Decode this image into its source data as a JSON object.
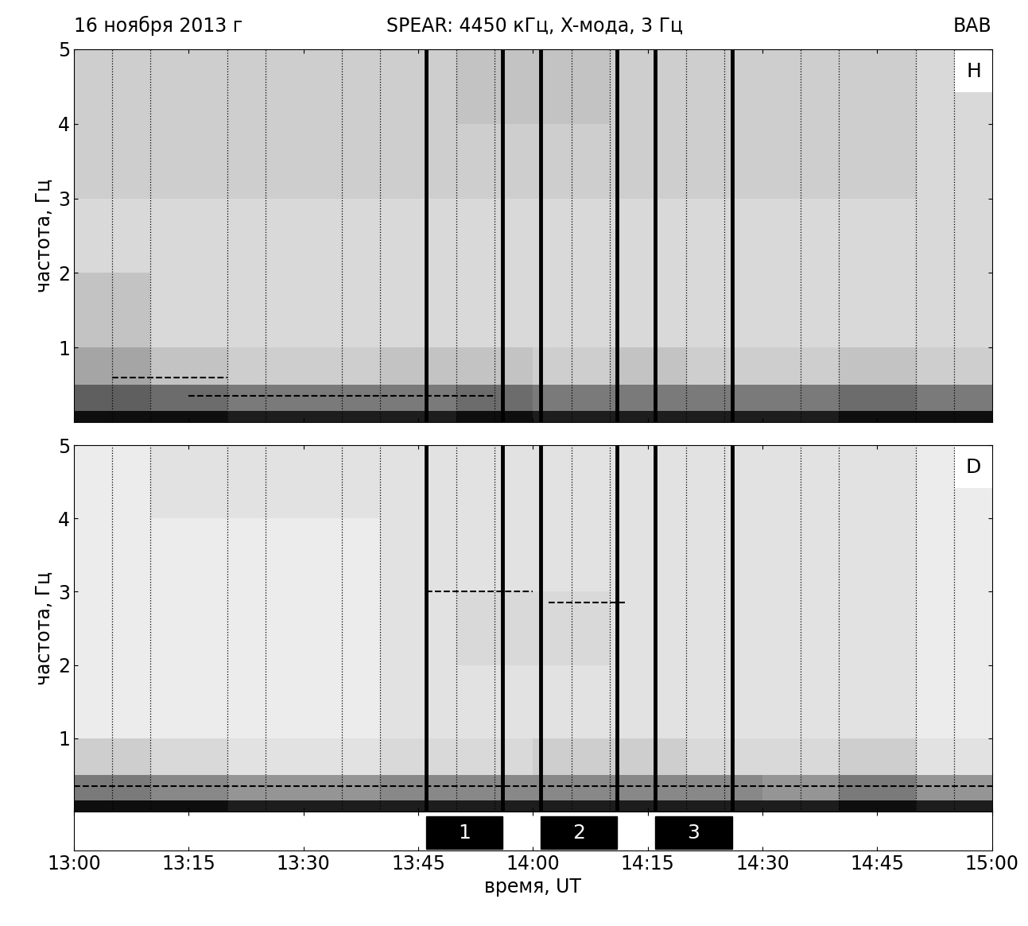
{
  "chart_data": {
    "type": "spectrogram",
    "title_left": "16 ноября 2013 г",
    "title": "SPEAR: 4450 кГц, X-мода, 3 Гц",
    "title_right": "BAB",
    "xlabel": "время, UT",
    "xlim": [
      0,
      120
    ],
    "xticks": [
      {
        "value": 0,
        "label": "13:00"
      },
      {
        "value": 15,
        "label": "13:15"
      },
      {
        "value": 30,
        "label": "13:30"
      },
      {
        "value": 45,
        "label": "13:45"
      },
      {
        "value": 60,
        "label": "14:00"
      },
      {
        "value": 75,
        "label": "14:15"
      },
      {
        "value": 90,
        "label": "14:30"
      },
      {
        "value": 105,
        "label": "14:45"
      },
      {
        "value": 120,
        "label": "15:00"
      }
    ],
    "xminorticks": [
      5,
      10,
      20,
      25,
      35,
      40,
      50,
      55,
      65,
      70,
      80,
      85,
      95,
      100,
      110,
      115
    ],
    "grid": true,
    "color": "#000000",
    "time_edges": [
      0,
      10,
      20,
      30,
      40,
      50,
      60,
      70,
      80,
      90,
      100,
      110,
      120
    ],
    "freq_edges": [
      0,
      0.15,
      0.5,
      1,
      2,
      3,
      4,
      5
    ],
    "color_range": [
      0,
      1
    ],
    "heating": [
      {
        "label": "1",
        "start": 46,
        "end": 56
      },
      {
        "label": "2",
        "start": 61,
        "end": 71
      },
      {
        "label": "3",
        "start": 76,
        "end": 86
      }
    ],
    "panels": [
      {
        "name": "H",
        "ylabel": "частота, Гц",
        "ylim": [
          0,
          5
        ],
        "yticks": [
          1,
          2,
          3,
          4,
          5
        ],
        "tick_labels": "y",
        "cells": [
          [
            0.95,
            0.95,
            0.9,
            0.9,
            0.9,
            0.95,
            0.9,
            0.9,
            0.9,
            0.9,
            0.95,
            0.95
          ],
          [
            0.7,
            0.65,
            0.6,
            0.6,
            0.6,
            0.65,
            0.6,
            0.6,
            0.6,
            0.6,
            0.65,
            0.6
          ],
          [
            0.45,
            0.35,
            0.3,
            0.3,
            0.35,
            0.35,
            0.3,
            0.35,
            0.3,
            0.3,
            0.35,
            0.3
          ],
          [
            0.35,
            0.25,
            0.25,
            0.25,
            0.25,
            0.25,
            0.25,
            0.25,
            0.25,
            0.25,
            0.25,
            0.25
          ],
          [
            0.25,
            0.25,
            0.25,
            0.25,
            0.25,
            0.25,
            0.25,
            0.25,
            0.25,
            0.25,
            0.25,
            0.25
          ],
          [
            0.3,
            0.3,
            0.3,
            0.3,
            0.3,
            0.3,
            0.3,
            0.3,
            0.3,
            0.3,
            0.3,
            0.25
          ],
          [
            0.3,
            0.3,
            0.3,
            0.3,
            0.3,
            0.35,
            0.35,
            0.3,
            0.3,
            0.3,
            0.3,
            0.25
          ]
        ],
        "lines": [
          {
            "x": [
              5,
              20
            ],
            "y": [
              0.6,
              0.6
            ],
            "line_style": "dashed"
          },
          {
            "x": [
              15,
              55
            ],
            "y": [
              0.35,
              0.35
            ],
            "line_style": "dashed"
          }
        ]
      },
      {
        "name": "D",
        "ylabel": "частота, Гц",
        "ylim": [
          0,
          5
        ],
        "yticks": [
          1,
          2,
          3,
          4,
          5
        ],
        "tick_labels": "y",
        "cells": [
          [
            0.95,
            0.95,
            0.9,
            0.9,
            0.9,
            0.9,
            0.9,
            0.9,
            0.9,
            0.9,
            0.95,
            0.9
          ],
          [
            0.6,
            0.55,
            0.5,
            0.5,
            0.55,
            0.55,
            0.55,
            0.55,
            0.55,
            0.5,
            0.6,
            0.5
          ],
          [
            0.3,
            0.25,
            0.2,
            0.2,
            0.25,
            0.25,
            0.3,
            0.3,
            0.25,
            0.25,
            0.3,
            0.2
          ],
          [
            0.15,
            0.15,
            0.15,
            0.15,
            0.2,
            0.2,
            0.2,
            0.2,
            0.2,
            0.2,
            0.2,
            0.15
          ],
          [
            0.15,
            0.15,
            0.15,
            0.15,
            0.2,
            0.25,
            0.25,
            0.2,
            0.2,
            0.2,
            0.2,
            0.15
          ],
          [
            0.15,
            0.15,
            0.15,
            0.15,
            0.2,
            0.2,
            0.2,
            0.2,
            0.2,
            0.2,
            0.2,
            0.15
          ],
          [
            0.15,
            0.2,
            0.2,
            0.2,
            0.2,
            0.2,
            0.2,
            0.2,
            0.2,
            0.2,
            0.2,
            0.15
          ]
        ],
        "lines": [
          {
            "x": [
              0,
              120
            ],
            "y": [
              0.35,
              0.35
            ],
            "line_style": "dashed"
          },
          {
            "x": [
              46,
              60
            ],
            "y": [
              3.0,
              3.0
            ],
            "line_style": "dashed"
          },
          {
            "x": [
              62,
              72
            ],
            "y": [
              2.85,
              2.85
            ],
            "line_style": "dashed"
          }
        ]
      }
    ]
  }
}
